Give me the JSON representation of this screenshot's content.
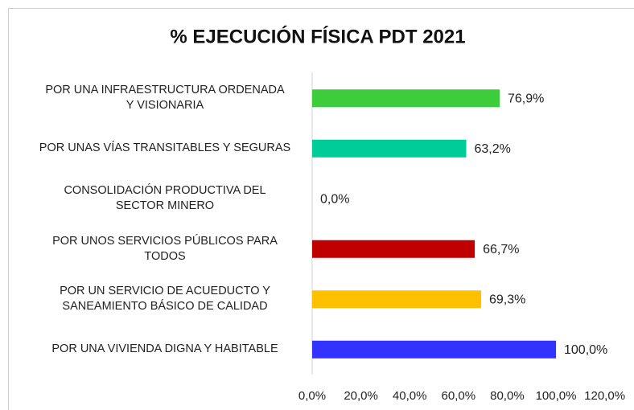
{
  "chart_data": {
    "type": "barh",
    "title": "% EJECUCIÓN FÍSICA PDT  2021",
    "categories": [
      "POR UNA INFRAESTRUCTURA ORDENADA\nY VISIONARIA",
      "POR UNAS VÍAS TRANSITABLES Y SEGURAS",
      "CONSOLIDACIÓN PRODUCTIVA DEL\nSECTOR MINERO",
      "POR UNOS SERVICIOS PÚBLICOS PARA\nTODOS",
      "POR UN SERVICIO DE ACUEDUCTO Y\nSANEAMIENTO BÁSICO DE CALIDAD",
      "POR UNA VIVIENDA DIGNA Y HABITABLE"
    ],
    "values": [
      76.9,
      63.2,
      0,
      66.7,
      69.3,
      100
    ],
    "value_labels": [
      "76,9%",
      "63,2%",
      "0,0%",
      "66,7%",
      "69,3%",
      "100,0%"
    ],
    "colors": [
      "#3ccc3c",
      "#00cc99",
      "#999999",
      "#c00000",
      "#ffc000",
      "#3333ff"
    ],
    "xlim": [
      0,
      120
    ],
    "xticks": [
      {
        "value": 0,
        "label": "0,0%"
      },
      {
        "value": 20,
        "label": "20,0%"
      },
      {
        "value": 40,
        "label": "40,0%"
      },
      {
        "value": 60,
        "label": "60,0%"
      },
      {
        "value": 80,
        "label": "80,0%"
      },
      {
        "value": 100,
        "label": "100,0%"
      },
      {
        "value": 120,
        "label": "120,0%"
      }
    ]
  }
}
